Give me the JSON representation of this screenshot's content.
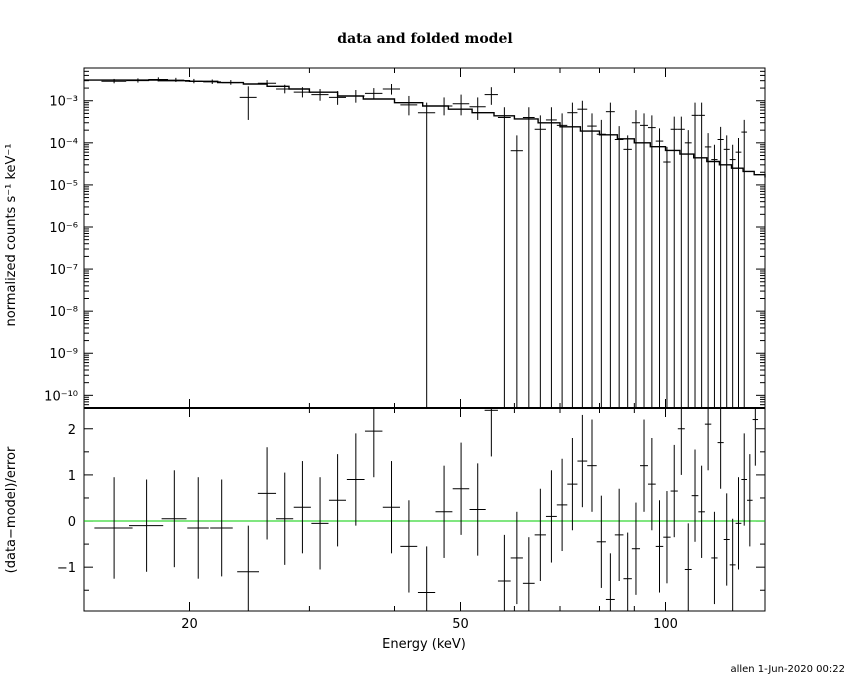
{
  "title": "data and folded model",
  "footer": "allen   1-Jun-2020 00:22",
  "colors": {
    "ink": "#000000",
    "zero_line": "#00cc00",
    "background": "#ffffff"
  },
  "chart_data": [
    {
      "type": "scatter",
      "panel": "top",
      "xlabel": "",
      "ylabel": "normalized counts s⁻¹ keV⁻¹",
      "xscale": "log",
      "yscale": "log",
      "xlim": [
        14,
        140
      ],
      "ylim": [
        5e-11,
        0.006
      ],
      "y_tick_labels": [
        "10⁻³",
        "10⁻⁴",
        "10⁻⁵",
        "10⁻⁶",
        "10⁻⁷",
        "10⁻⁸",
        "10⁻⁹",
        "10⁻¹⁰"
      ],
      "series": [
        {
          "kind": "data",
          "x": [
            15.5,
            16.8,
            18.0,
            19.1,
            20.3,
            21.6,
            23.0,
            24.4,
            26.0,
            27.6,
            29.3,
            31.1,
            33.0,
            35.1,
            37.3,
            39.6,
            42.0,
            44.6,
            47.3,
            50.1,
            53.0,
            55.5,
            58.0,
            60.5,
            63.0,
            65.5,
            68.0,
            70.5,
            73.0,
            75.5,
            78.0,
            80.5,
            83.0,
            85.5,
            88.0,
            90.5,
            93.0,
            95.5,
            98.0,
            100.5,
            103.0,
            105.5,
            108.0,
            110.5,
            113.0,
            115.5,
            118.0,
            120.5,
            123.0,
            125.5,
            128.0,
            130.5
          ],
          "xerr": [
            0.65,
            0.65,
            0.6,
            0.55,
            0.6,
            0.65,
            0.7,
            0.7,
            0.8,
            0.8,
            0.85,
            0.9,
            0.95,
            1.05,
            1.1,
            1.15,
            1.2,
            1.3,
            1.35,
            1.4,
            1.45,
            1.25,
            1.25,
            1.25,
            1.25,
            1.25,
            1.25,
            1.25,
            1.25,
            1.25,
            1.25,
            1.25,
            1.25,
            1.25,
            1.25,
            1.25,
            1.25,
            1.25,
            1.25,
            1.25,
            1.25,
            1.25,
            1.25,
            1.25,
            1.25,
            1.25,
            1.25,
            1.25,
            1.25,
            1.25,
            1.25,
            1.25
          ],
          "y": [
            0.0029,
            0.003,
            0.0032,
            0.0031,
            0.0029,
            0.0028,
            0.0027,
            0.0012,
            0.0026,
            0.0019,
            0.0016,
            0.0014,
            0.0012,
            0.0013,
            0.0015,
            0.0019,
            0.0008,
            0.00052,
            0.00075,
            0.00085,
            0.00072,
            0.0014,
            0.0004,
            6.5e-05,
            0.0004,
            0.00021,
            0.00035,
            0.00026,
            0.00052,
            0.00063,
            0.00025,
            0.00016,
            0.00055,
            0.00012,
            7e-05,
            0.0003,
            0.00026,
            0.00023,
            0.00011,
            3.5e-05,
            0.00021,
            0.00021,
            0.0001,
            0.00045,
            0.00045,
            8e-05,
            4e-05,
            0.00012,
            7e-05,
            4e-05,
            6e-05,
            0.00018
          ],
          "ylo": [
            0.0026,
            0.0027,
            0.0029,
            0.0028,
            0.0026,
            0.0025,
            0.0024,
            0.00035,
            0.0022,
            0.0015,
            0.0012,
            0.001,
            0.0008,
            0.0009,
            0.0011,
            0.0014,
            0.00045,
            1e-11,
            0.00045,
            0.00045,
            0.00035,
            0.0008,
            1e-11,
            1e-11,
            1e-11,
            1e-11,
            1e-11,
            1e-11,
            1e-11,
            1e-11,
            1e-11,
            1e-11,
            1e-11,
            1e-11,
            1e-11,
            1e-11,
            1e-11,
            1e-11,
            1e-11,
            1e-11,
            1e-11,
            1e-11,
            1e-11,
            1e-11,
            1e-11,
            1e-11,
            1e-11,
            1e-11,
            1e-11,
            1e-11,
            1e-11,
            1e-11
          ],
          "yhi": [
            0.0033,
            0.0034,
            0.0036,
            0.0035,
            0.0033,
            0.0032,
            0.0031,
            0.0022,
            0.0031,
            0.0024,
            0.0021,
            0.0019,
            0.0017,
            0.0018,
            0.002,
            0.0025,
            0.0013,
            0.0009,
            0.0012,
            0.0014,
            0.0012,
            0.0021,
            0.0007,
            0.00015,
            0.0007,
            0.00045,
            0.0007,
            0.0005,
            0.0009,
            0.001,
            0.0005,
            0.00035,
            0.0009,
            0.00025,
            0.00015,
            0.0006,
            0.0005,
            0.00045,
            0.00022,
            8e-05,
            0.00042,
            0.00042,
            0.0002,
            0.0009,
            0.0009,
            0.00017,
            9e-05,
            0.00024,
            0.00015,
            9e-05,
            0.00013,
            0.00035
          ]
        },
        {
          "kind": "model",
          "x": [
            14,
            16,
            18,
            20,
            22,
            24,
            26,
            28,
            30,
            33,
            36,
            40,
            44,
            48,
            52,
            56,
            60,
            65,
            70,
            75,
            80,
            85,
            90,
            95,
            100,
            105,
            110,
            115,
            120,
            125,
            130,
            135,
            140
          ],
          "y": [
            0.0031,
            0.0031,
            0.003,
            0.0029,
            0.0027,
            0.0025,
            0.0022,
            0.0019,
            0.0016,
            0.0013,
            0.0011,
            0.0009,
            0.00075,
            0.00063,
            0.00052,
            0.00044,
            0.00037,
            0.0003,
            0.00024,
            0.00019,
            0.000155,
            0.000125,
            0.0001,
            8.1e-05,
            6.6e-05,
            5.4e-05,
            4.4e-05,
            3.6e-05,
            3e-05,
            2.5e-05,
            2.1e-05,
            1.75e-05,
            1.5e-05
          ]
        }
      ]
    },
    {
      "type": "scatter",
      "panel": "bottom",
      "xlabel": "Energy (keV)",
      "ylabel": "(data−model)/error",
      "xscale": "log",
      "xlim": [
        14,
        140
      ],
      "ylim": [
        -1.95,
        2.45
      ],
      "x_ticks": [
        20,
        50,
        100
      ],
      "x_tick_labels": [
        "20",
        "50",
        "100"
      ],
      "y_ticks": [
        -1,
        0,
        1,
        2
      ],
      "y_tick_labels": [
        "−1",
        "0",
        "1",
        "2"
      ],
      "zero_line": 0,
      "series": [
        {
          "kind": "residuals",
          "x": [
            15.5,
            17.3,
            19.0,
            20.6,
            22.3,
            24.4,
            26.0,
            27.6,
            29.3,
            31.1,
            33.0,
            35.1,
            37.3,
            39.6,
            42.0,
            44.6,
            47.3,
            50.1,
            53.0,
            55.5,
            58.0,
            60.5,
            63.0,
            65.5,
            68.0,
            70.5,
            73.0,
            75.5,
            78.0,
            80.5,
            83.0,
            85.5,
            88.0,
            90.5,
            93.0,
            95.5,
            98.0,
            100.5,
            103.0,
            105.5,
            108.0,
            110.5,
            113.0,
            115.5,
            118.0,
            120.5,
            123.0,
            125.5,
            128.0,
            130.5,
            133.0,
            135.5
          ],
          "xerr": [
            1.0,
            1.0,
            0.8,
            0.75,
            0.85,
            0.9,
            0.8,
            0.8,
            0.85,
            0.9,
            0.95,
            1.05,
            1.1,
            1.15,
            1.2,
            1.3,
            1.35,
            1.4,
            1.45,
            1.25,
            1.25,
            1.25,
            1.25,
            1.25,
            1.25,
            1.25,
            1.25,
            1.25,
            1.25,
            1.25,
            1.25,
            1.25,
            1.25,
            1.25,
            1.25,
            1.25,
            1.25,
            1.25,
            1.25,
            1.25,
            1.25,
            1.25,
            1.25,
            1.25,
            1.25,
            1.25,
            1.25,
            1.25,
            1.25,
            1.25,
            1.25,
            1.25
          ],
          "y": [
            -0.15,
            -0.1,
            0.05,
            -0.15,
            -0.15,
            -1.1,
            0.6,
            0.05,
            0.3,
            -0.05,
            0.45,
            0.9,
            1.95,
            0.3,
            -0.55,
            -1.55,
            0.2,
            0.7,
            0.25,
            2.4,
            -1.3,
            -0.8,
            -1.35,
            -0.3,
            0.1,
            0.35,
            0.8,
            1.3,
            1.2,
            -0.45,
            -1.7,
            -0.3,
            -1.25,
            -0.6,
            1.2,
            0.8,
            -0.55,
            -0.35,
            0.65,
            2.0,
            -1.05,
            0.55,
            0.2,
            2.1,
            -0.8,
            1.7,
            -0.4,
            -0.95,
            -0.05,
            0.9,
            0.45,
            2.2
          ],
          "yerr": [
            1.1,
            1.0,
            1.05,
            1.1,
            1.05,
            1.0,
            1.0,
            1.0,
            1.0,
            1.0,
            1.0,
            1.0,
            1.0,
            1.0,
            1.0,
            1.0,
            1.0,
            1.0,
            1.0,
            1.0,
            1.0,
            1.0,
            1.0,
            1.0,
            1.0,
            1.0,
            1.0,
            1.0,
            1.0,
            1.0,
            1.0,
            1.0,
            1.0,
            1.0,
            1.0,
            1.0,
            1.0,
            1.0,
            1.0,
            1.0,
            1.0,
            1.0,
            1.0,
            1.0,
            1.0,
            1.0,
            1.0,
            1.0,
            1.0,
            1.0,
            1.0,
            1.0
          ]
        }
      ]
    }
  ]
}
